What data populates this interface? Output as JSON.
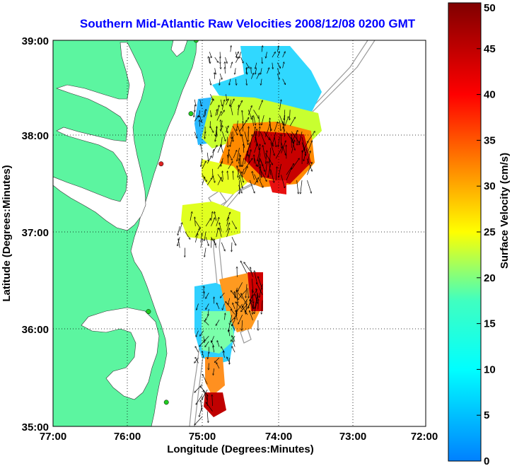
{
  "title": "Southern Mid-Atlantic Raw Velocities 2008/12/08 0200 GMT",
  "chart_data": {
    "type": "map",
    "xlabel": "Longitude (Degrees:Minutes)",
    "ylabel": "Latitude (Degrees:Minutes)",
    "x_ticks": [
      "77:00",
      "76:00",
      "75:00",
      "74:00",
      "73:00",
      "72:00"
    ],
    "y_ticks": [
      "39:00",
      "38:00",
      "37:00",
      "36:00",
      "35:00"
    ],
    "xlim": [
      -77,
      -72
    ],
    "ylim": [
      35,
      39
    ],
    "grid": true,
    "colorbar": {
      "label": "Surface Velocity (cm/s)",
      "ticks": [
        "50",
        "45",
        "40",
        "35",
        "30",
        "25",
        "20",
        "15",
        "10",
        "5",
        "0"
      ],
      "range": [
        0,
        50
      ],
      "colormap": "jet"
    },
    "land_color": "#5cf5a0",
    "ocean_color": "#ffffff",
    "bathymetry_color": "#999999",
    "radar_sites": [
      {
        "lon": -75.08,
        "lat": 39.0,
        "color": "#22cc22"
      },
      {
        "lon": -75.15,
        "lat": 38.24,
        "color": "#22cc22"
      },
      {
        "lon": -75.55,
        "lat": 37.72,
        "color": "#dd2222"
      },
      {
        "lon": -75.72,
        "lat": 36.19,
        "color": "#22cc22"
      },
      {
        "lon": -75.48,
        "lat": 35.25,
        "color": "#22cc22"
      }
    ],
    "velocity_regions": [
      {
        "name": "north-blue",
        "lon": [
          -74.9,
          -73.9
        ],
        "lat": [
          38.6,
          38.9
        ],
        "speed": 10
      },
      {
        "name": "north-west",
        "lon": [
          -75.1,
          -74.6
        ],
        "lat": [
          38.05,
          38.45
        ],
        "speed": 12
      },
      {
        "name": "north-core",
        "lon": [
          -74.5,
          -73.55
        ],
        "lat": [
          37.55,
          38.1
        ],
        "speed": 47
      },
      {
        "name": "north-band",
        "lon": [
          -74.8,
          -73.8
        ],
        "lat": [
          38.0,
          38.3
        ],
        "speed": 30
      },
      {
        "name": "north-south",
        "lon": [
          -75.0,
          -74.2
        ],
        "lat": [
          37.5,
          37.85
        ],
        "speed": 22
      },
      {
        "name": "middle-yellow",
        "lon": [
          -75.3,
          -74.6
        ],
        "lat": [
          36.85,
          37.15
        ],
        "speed": 25
      },
      {
        "name": "south-blue",
        "lon": [
          -75.05,
          -74.5
        ],
        "lat": [
          35.6,
          36.4
        ],
        "speed": 12
      },
      {
        "name": "south-east",
        "lon": [
          -74.6,
          -74.2
        ],
        "lat": [
          36.1,
          36.6
        ],
        "speed": 30
      },
      {
        "name": "south-red",
        "lon": [
          -74.4,
          -74.15
        ],
        "lat": [
          36.25,
          36.6
        ],
        "speed": 48
      },
      {
        "name": "south-tip",
        "lon": [
          -75.0,
          -74.8
        ],
        "lat": [
          35.1,
          35.45
        ],
        "speed": 35
      }
    ]
  }
}
